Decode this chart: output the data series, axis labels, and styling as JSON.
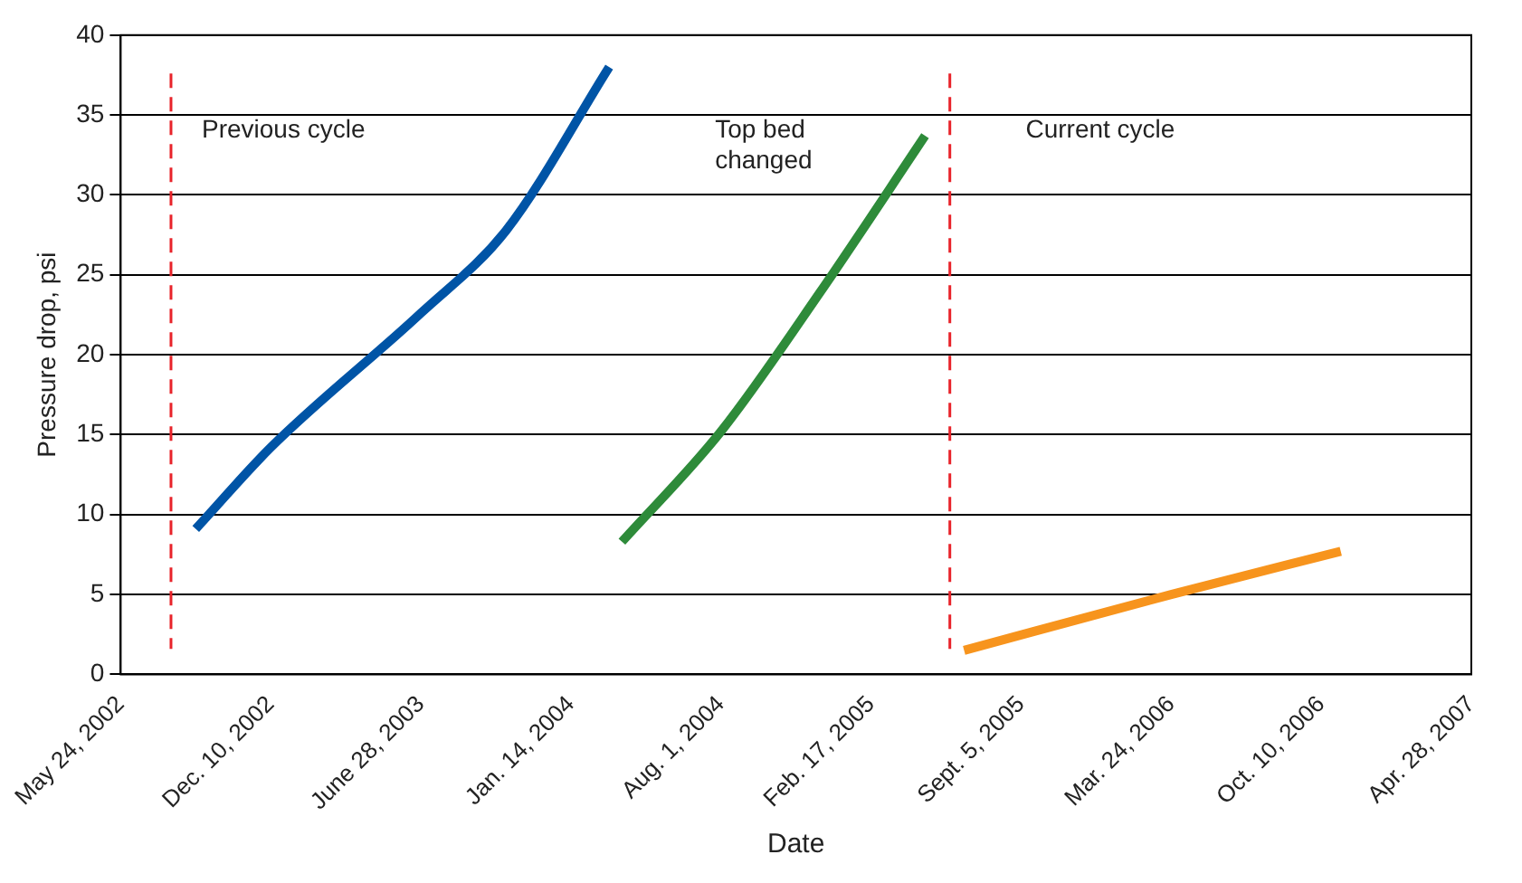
{
  "chart_data": {
    "type": "line",
    "xlabel": "Date",
    "ylabel": "Pressure drop, psi",
    "xlim": [
      "2002-05-24",
      "2007-04-28"
    ],
    "xticks": [
      {
        "value": "2002-05-24",
        "label": "May 24, 2002"
      },
      {
        "value": "2002-12-10",
        "label": "Dec. 10, 2002"
      },
      {
        "value": "2003-06-28",
        "label": "June 28, 2003"
      },
      {
        "value": "2004-01-14",
        "label": "Jan. 14, 2004"
      },
      {
        "value": "2004-08-01",
        "label": "Aug. 1, 2004"
      },
      {
        "value": "2005-02-17",
        "label": "Feb. 17, 2005"
      },
      {
        "value": "2005-09-05",
        "label": "Sept. 5, 2005"
      },
      {
        "value": "2006-03-24",
        "label": "Mar. 24, 2006"
      },
      {
        "value": "2006-10-10",
        "label": "Oct. 10, 2006"
      },
      {
        "value": "2007-04-28",
        "label": "Apr. 28, 2007"
      }
    ],
    "ylim": [
      0,
      40
    ],
    "yticks": [
      0,
      5,
      10,
      15,
      20,
      25,
      30,
      35,
      40
    ],
    "grid": "y",
    "marker": "none",
    "line_style": "solid",
    "series": [
      {
        "color": "#0054a6",
        "x": [
          "2002-09-01",
          "2002-12-10",
          "2003-06-28",
          "2003-10-20",
          "2004-03-05"
        ],
        "values": [
          9.1,
          14.2,
          22.6,
          27.8,
          38
        ]
      },
      {
        "color": "#2e8b3a",
        "x": [
          "2004-03-22",
          "2004-08-01",
          "2004-12-11",
          "2005-04-30"
        ],
        "values": [
          8.3,
          15.2,
          23.9,
          33.7
        ]
      },
      {
        "color": "#f7941d",
        "x": [
          "2005-06-21",
          "2006-03-24",
          "2006-11-05"
        ],
        "values": [
          1.5,
          5.0,
          7.7
        ]
      }
    ],
    "ref_lines": [
      {
        "axis": "x",
        "value": "2002-07-30",
        "color": "#e8232a",
        "line_style": "dashed"
      },
      {
        "axis": "x",
        "value": "2005-06-02",
        "color": "#e8232a",
        "line_style": "dashed"
      }
    ],
    "annotations": [
      "Previous cycle",
      "Top bed changed",
      "Current cycle"
    ]
  }
}
